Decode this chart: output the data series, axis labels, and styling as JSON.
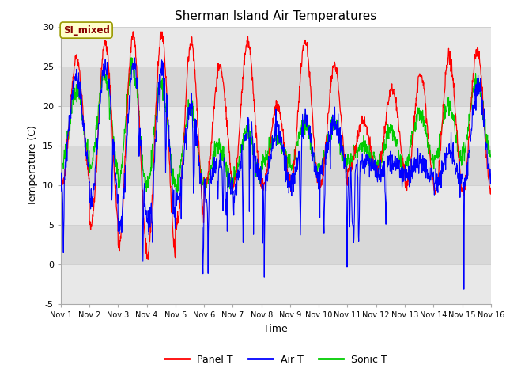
{
  "title": "Sherman Island Air Temperatures",
  "xlabel": "Time",
  "ylabel": "Temperature (C)",
  "ylim": [
    -5,
    30
  ],
  "xlim": [
    0,
    15
  ],
  "xtick_labels": [
    "Nov 1",
    "Nov 2",
    "Nov 3",
    "Nov 4",
    "Nov 5",
    "Nov 6",
    "Nov 7",
    "Nov 8",
    "Nov 9",
    "Nov 10",
    "Nov 11",
    "Nov 12",
    "Nov 13",
    "Nov 14",
    "Nov 15",
    "Nov 16"
  ],
  "xtick_positions": [
    0,
    1,
    2,
    3,
    4,
    5,
    6,
    7,
    8,
    9,
    10,
    11,
    12,
    13,
    14,
    15
  ],
  "ytick_positions": [
    -5,
    0,
    5,
    10,
    15,
    20,
    25,
    30
  ],
  "grid_color": "#d0d0d0",
  "bg_color_light": "#e8e8e8",
  "bg_color_dark": "#d8d8d8",
  "fig_bg": "#ffffff",
  "panel_color": "#ff0000",
  "air_color": "#0000ff",
  "sonic_color": "#00cc00",
  "label_box_text": "SI_mixed",
  "label_box_bg": "#ffffcc",
  "label_box_edge": "#999900",
  "label_box_text_color": "#880000",
  "title_fontsize": 11,
  "axis_label_fontsize": 9,
  "tick_fontsize": 8,
  "legend_fontsize": 9,
  "linewidth": 0.9
}
